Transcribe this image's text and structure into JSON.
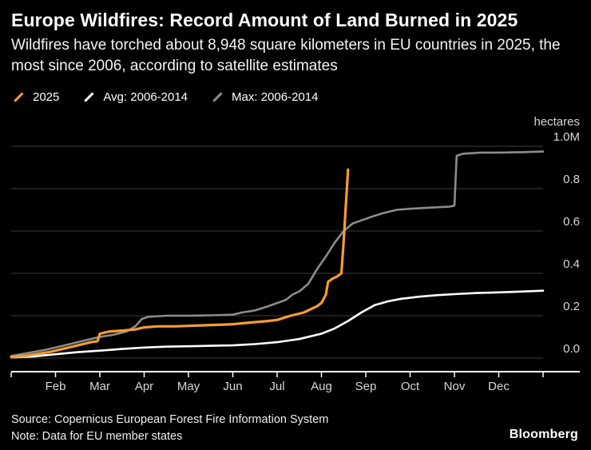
{
  "header": {
    "title": "Europe Wildfires: Record Amount of Land Burned in 2025",
    "subtitle": "Wildfires have torched about 8,948 square kilometers in EU countries in 2025, the most since 2006, according to satellite estimates"
  },
  "legend": [
    {
      "label": "2025",
      "color": "#f79b32"
    },
    {
      "label": "Avg: 2006-2014",
      "color": "#ffffff"
    },
    {
      "label": "Max: 2006-2014",
      "color": "#8c8c8c"
    }
  ],
  "colors": {
    "background": "#000000",
    "grid": "#3d3d3d",
    "axis": "#ffffff",
    "tick_text": "#d8d8d8",
    "accent_orange": "#f79b32",
    "series_gray": "#8c8c8c",
    "series_white": "#ffffff"
  },
  "chart_data": {
    "type": "line",
    "title": "Europe Wildfires: Record Amount of Land Burned in 2025",
    "ylabel": "hectares",
    "ylim": [
      0,
      1.0
    ],
    "yticks": [
      0,
      0.2,
      0.4,
      0.6,
      0.8,
      1.0
    ],
    "ytick_labels": [
      "0.0",
      "0.2",
      "0.4",
      "0.6",
      "0.8",
      "1.0M"
    ],
    "xlim": [
      0,
      12
    ],
    "xtick_positions": [
      1,
      2,
      3,
      4,
      5,
      6,
      7,
      8,
      9,
      10,
      11
    ],
    "xtick_labels": [
      "Feb",
      "Mar",
      "Apr",
      "May",
      "Jun",
      "Jul",
      "Aug",
      "Sep",
      "Oct",
      "Nov",
      "Dec"
    ],
    "grid": true,
    "legend_position": "top-left",
    "series": [
      {
        "name": "Max: 2006-2014",
        "color": "#8c8c8c",
        "width": 2.6,
        "points": [
          [
            0,
            0.01
          ],
          [
            0.4,
            0.025
          ],
          [
            0.8,
            0.04
          ],
          [
            1.2,
            0.06
          ],
          [
            1.5,
            0.075
          ],
          [
            1.8,
            0.09
          ],
          [
            2.0,
            0.1
          ],
          [
            2.3,
            0.11
          ],
          [
            2.6,
            0.125
          ],
          [
            2.8,
            0.15
          ],
          [
            2.95,
            0.185
          ],
          [
            3.1,
            0.195
          ],
          [
            3.5,
            0.2
          ],
          [
            4.0,
            0.2
          ],
          [
            4.5,
            0.202
          ],
          [
            5.0,
            0.205
          ],
          [
            5.2,
            0.215
          ],
          [
            5.5,
            0.225
          ],
          [
            5.8,
            0.245
          ],
          [
            6.0,
            0.26
          ],
          [
            6.2,
            0.275
          ],
          [
            6.35,
            0.3
          ],
          [
            6.5,
            0.315
          ],
          [
            6.7,
            0.35
          ],
          [
            6.9,
            0.42
          ],
          [
            7.1,
            0.48
          ],
          [
            7.3,
            0.545
          ],
          [
            7.5,
            0.6
          ],
          [
            7.7,
            0.635
          ],
          [
            7.9,
            0.65
          ],
          [
            8.1,
            0.665
          ],
          [
            8.4,
            0.685
          ],
          [
            8.7,
            0.7
          ],
          [
            9.0,
            0.705
          ],
          [
            9.4,
            0.71
          ],
          [
            9.9,
            0.715
          ],
          [
            10.0,
            0.72
          ],
          [
            10.05,
            0.955
          ],
          [
            10.2,
            0.965
          ],
          [
            10.6,
            0.97
          ],
          [
            11.0,
            0.97
          ],
          [
            11.5,
            0.972
          ],
          [
            12.0,
            0.975
          ]
        ]
      },
      {
        "name": "Avg: 2006-2014",
        "color": "#ffffff",
        "width": 2.6,
        "points": [
          [
            0,
            0.003
          ],
          [
            0.5,
            0.008
          ],
          [
            1.0,
            0.018
          ],
          [
            1.5,
            0.028
          ],
          [
            2.0,
            0.035
          ],
          [
            2.5,
            0.043
          ],
          [
            3.0,
            0.05
          ],
          [
            3.5,
            0.054
          ],
          [
            4.0,
            0.056
          ],
          [
            4.5,
            0.058
          ],
          [
            5.0,
            0.06
          ],
          [
            5.5,
            0.066
          ],
          [
            6.0,
            0.075
          ],
          [
            6.5,
            0.09
          ],
          [
            7.0,
            0.115
          ],
          [
            7.3,
            0.14
          ],
          [
            7.6,
            0.175
          ],
          [
            7.9,
            0.215
          ],
          [
            8.2,
            0.25
          ],
          [
            8.5,
            0.268
          ],
          [
            8.8,
            0.28
          ],
          [
            9.2,
            0.29
          ],
          [
            9.6,
            0.297
          ],
          [
            10.0,
            0.302
          ],
          [
            10.5,
            0.307
          ],
          [
            11.0,
            0.31
          ],
          [
            11.5,
            0.314
          ],
          [
            12.0,
            0.318
          ]
        ]
      },
      {
        "name": "2025",
        "color": "#f79b32",
        "width": 3.2,
        "points": [
          [
            0,
            0.005
          ],
          [
            0.3,
            0.01
          ],
          [
            0.6,
            0.02
          ],
          [
            0.9,
            0.03
          ],
          [
            1.2,
            0.045
          ],
          [
            1.5,
            0.06
          ],
          [
            1.8,
            0.075
          ],
          [
            1.95,
            0.08
          ],
          [
            2.0,
            0.115
          ],
          [
            2.2,
            0.125
          ],
          [
            2.5,
            0.13
          ],
          [
            2.8,
            0.135
          ],
          [
            3.0,
            0.145
          ],
          [
            3.3,
            0.15
          ],
          [
            3.7,
            0.15
          ],
          [
            4.0,
            0.152
          ],
          [
            4.4,
            0.155
          ],
          [
            4.8,
            0.158
          ],
          [
            5.0,
            0.16
          ],
          [
            5.4,
            0.168
          ],
          [
            5.8,
            0.175
          ],
          [
            6.0,
            0.18
          ],
          [
            6.3,
            0.2
          ],
          [
            6.6,
            0.215
          ],
          [
            6.9,
            0.245
          ],
          [
            7.0,
            0.26
          ],
          [
            7.1,
            0.3
          ],
          [
            7.15,
            0.36
          ],
          [
            7.25,
            0.375
          ],
          [
            7.35,
            0.385
          ],
          [
            7.45,
            0.4
          ],
          [
            7.5,
            0.55
          ],
          [
            7.55,
            0.72
          ],
          [
            7.6,
            0.89
          ]
        ]
      }
    ]
  },
  "footer": {
    "source": "Source: Copernicus European Forest Fire Information System",
    "note": "Note: Data for EU member states",
    "brand": "Bloomberg"
  }
}
